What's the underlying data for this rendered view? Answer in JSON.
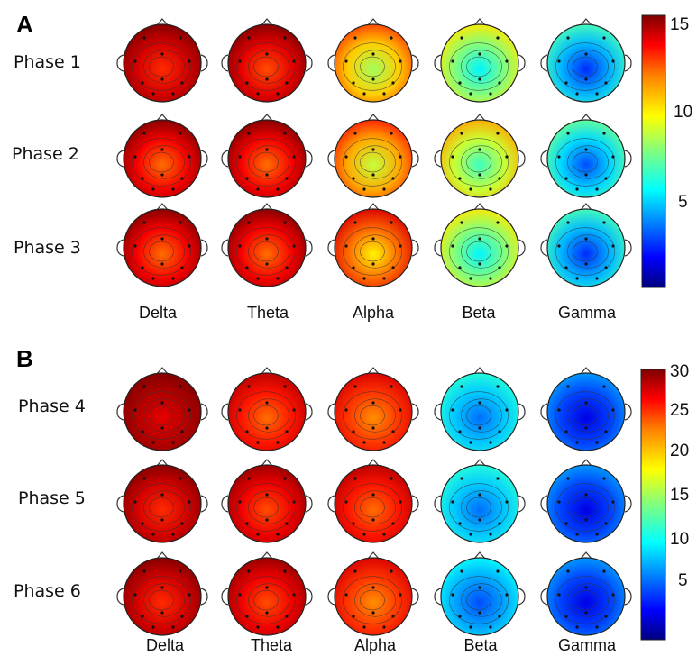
{
  "panels": [
    {
      "letter": "A",
      "rows": [
        "Phase 1",
        "Phase 2",
        "Phase 3"
      ],
      "bands": [
        "Delta",
        "Theta",
        "Alpha",
        "Beta",
        "Gamma"
      ],
      "colorbar": {
        "min": 0,
        "max": 15,
        "ticks": [
          "5",
          "10",
          "15"
        ]
      },
      "maps": [
        {
          "phase": "Phase 1",
          "values": [
            12.5,
            12.0,
            8.0,
            5.5,
            2.5
          ]
        },
        {
          "phase": "Phase 2",
          "values": [
            11.5,
            11.5,
            8.5,
            6.5,
            3.0
          ]
        },
        {
          "phase": "Phase 3",
          "values": [
            11.5,
            11.5,
            9.5,
            5.5,
            2.5
          ]
        }
      ]
    },
    {
      "letter": "B",
      "rows": [
        "Phase 4",
        "Phase 5",
        "Phase 6"
      ],
      "bands": [
        "Delta",
        "Theta",
        "Alpha",
        "Beta",
        "Gamma"
      ],
      "colorbar": {
        "min": 0,
        "max": 30,
        "ticks": [
          "5",
          "10",
          "15",
          "20",
          "25",
          "30"
        ]
      },
      "maps": [
        {
          "phase": "Phase 4",
          "values": [
            27,
            23,
            22,
            7,
            3
          ]
        },
        {
          "phase": "Phase 5",
          "values": [
            25,
            24,
            23,
            7,
            3
          ]
        },
        {
          "phase": "Phase 6",
          "values": [
            25,
            24,
            22,
            6,
            3
          ]
        }
      ]
    }
  ],
  "colormap": [
    "#00007f",
    "#0000ff",
    "#007fff",
    "#00ffff",
    "#7fff7f",
    "#ffff00",
    "#ff7f00",
    "#ff0000",
    "#7f0000"
  ]
}
